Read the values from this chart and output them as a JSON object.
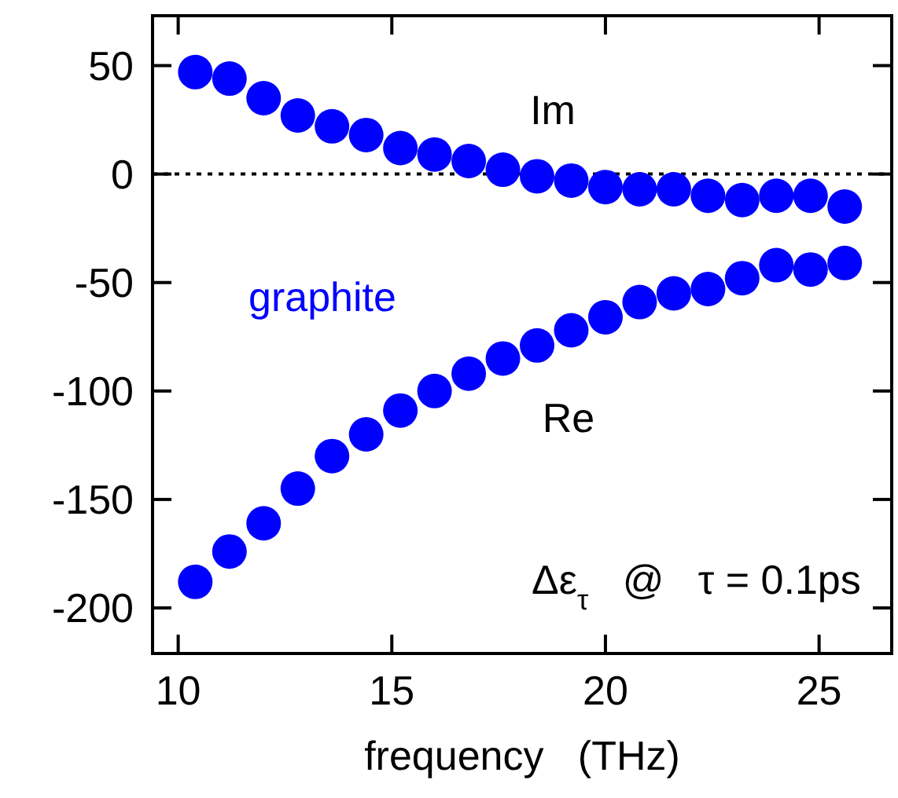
{
  "chart_data": {
    "type": "scatter",
    "xlabel": "frequency   (THz)",
    "x": [
      10.4,
      11.2,
      12.0,
      12.8,
      13.6,
      14.4,
      15.2,
      16.0,
      16.8,
      17.6,
      18.4,
      19.2,
      20.0,
      20.8,
      21.6,
      22.4,
      23.2,
      24.0,
      24.8,
      25.6
    ],
    "series": [
      {
        "name": "Im",
        "color": "#0000ff",
        "values": [
          47,
          44,
          35,
          27,
          22,
          18,
          12,
          9,
          6,
          2,
          -1,
          -3,
          -6,
          -7,
          -7,
          -10,
          -12,
          -10,
          -10,
          -15
        ]
      },
      {
        "name": "Re",
        "color": "#0000ff",
        "values": [
          -188,
          -174,
          -161,
          -145,
          -130,
          -120,
          -109,
          -100,
          -92,
          -85,
          -79,
          -72,
          -66,
          -59,
          -55,
          -53,
          -48,
          -42,
          -44,
          -41
        ]
      }
    ],
    "xlim": [
      9.4,
      26.7
    ],
    "xticks": [
      10,
      15,
      20,
      25
    ],
    "ylim": [
      -221,
      73
    ],
    "yticks": [
      50,
      0,
      -50,
      -100,
      -150,
      -200
    ],
    "ref_lines": [
      {
        "axis": "y",
        "value": 0,
        "line_style": "dotted",
        "color": "#000000"
      }
    ],
    "annotations": [
      "graphite",
      "Δε$_{τ}$   @   τ = 0.1ps"
    ],
    "marker": "circle"
  }
}
